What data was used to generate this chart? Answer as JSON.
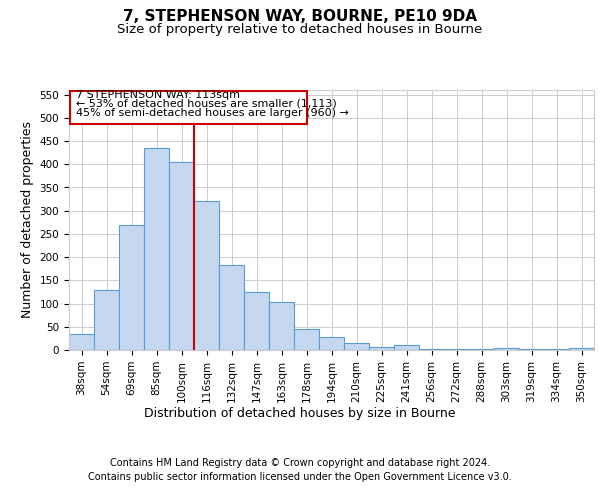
{
  "title": "7, STEPHENSON WAY, BOURNE, PE10 9DA",
  "subtitle": "Size of property relative to detached houses in Bourne",
  "xlabel": "Distribution of detached houses by size in Bourne",
  "ylabel": "Number of detached properties",
  "categories": [
    "38sqm",
    "54sqm",
    "69sqm",
    "85sqm",
    "100sqm",
    "116sqm",
    "132sqm",
    "147sqm",
    "163sqm",
    "178sqm",
    "194sqm",
    "210sqm",
    "225sqm",
    "241sqm",
    "256sqm",
    "272sqm",
    "288sqm",
    "303sqm",
    "319sqm",
    "334sqm",
    "350sqm"
  ],
  "bar_heights": [
    35,
    130,
    270,
    435,
    405,
    320,
    183,
    125,
    103,
    45,
    28,
    16,
    7,
    10,
    3,
    2,
    3,
    5,
    2,
    2,
    5
  ],
  "bar_color": "#c5d8f0",
  "bar_edge_color": "#5b9bd5",
  "vline_x": 4.5,
  "vline_color": "#cc0000",
  "annotation_line1": "7 STEPHENSON WAY: 113sqm",
  "annotation_line2": "← 53% of detached houses are smaller (1,113)",
  "annotation_line3": "45% of semi-detached houses are larger (960) →",
  "annotation_box_color": "#cc0000",
  "ylim": [
    0,
    560
  ],
  "yticks": [
    0,
    50,
    100,
    150,
    200,
    250,
    300,
    350,
    400,
    450,
    500,
    550
  ],
  "footer_line1": "Contains HM Land Registry data © Crown copyright and database right 2024.",
  "footer_line2": "Contains public sector information licensed under the Open Government Licence v3.0.",
  "background_color": "#ffffff",
  "grid_color": "#cccccc",
  "title_fontsize": 11,
  "subtitle_fontsize": 9.5,
  "axis_label_fontsize": 9,
  "tick_fontsize": 7.5,
  "footer_fontsize": 7,
  "annotation_fontsize": 8
}
